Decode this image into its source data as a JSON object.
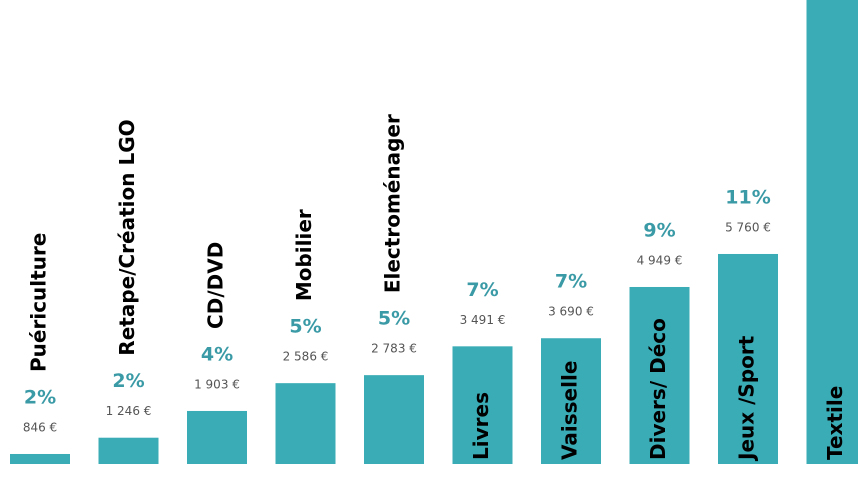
{
  "chart_data": {
    "type": "bar",
    "categories": [
      "Puériculture",
      "Retape/Création LGO",
      "CD/DVD",
      "Mobilier",
      "Electroménager",
      "Livres",
      "Vaisselle",
      "Divers/ Déco",
      "Jeux /Sport",
      "Textile"
    ],
    "values": [
      846,
      1246,
      1903,
      2586,
      2783,
      3491,
      3690,
      4949,
      5760,
      12000
    ],
    "value_labels": [
      "846 €",
      "1 246 €",
      "1 903 €",
      "2 586 €",
      "2 783 €",
      "3 491 €",
      "3 690 €",
      "4 949 €",
      "5 760 €",
      null
    ],
    "percent_values": [
      2,
      2,
      4,
      5,
      5,
      7,
      7,
      9,
      11,
      null
    ],
    "percent_labels": [
      "2%",
      "2%",
      "4%",
      "5%",
      "5%",
      "7%",
      "7%",
      "9%",
      "11%",
      null
    ],
    "color": "#3aacb6",
    "percent_color": "#3a9aa6",
    "ylim": [
      600,
      12000
    ]
  }
}
